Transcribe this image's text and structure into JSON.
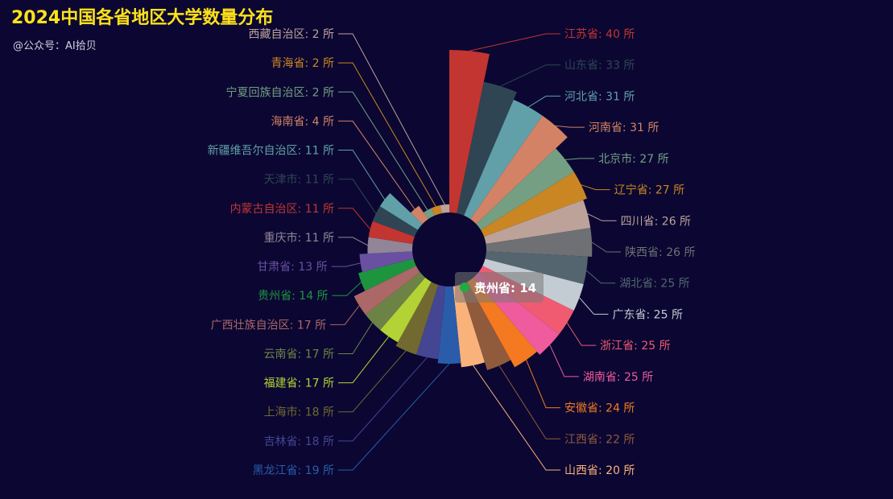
{
  "header": {
    "title": "2024中国各省地区大学数量分布",
    "subtitle": "@公众号：AI拾贝"
  },
  "tooltip": {
    "label": "贵州省: 14",
    "color": "#22a844"
  },
  "chart_data": {
    "type": "rose-pie",
    "unit": "所",
    "series": [
      {
        "name": "江苏省",
        "value": 40,
        "color": "#c23531"
      },
      {
        "name": "山东省",
        "value": 33,
        "color": "#2f4554"
      },
      {
        "name": "河北省",
        "value": 31,
        "color": "#61a0a8"
      },
      {
        "name": "河南省",
        "value": 31,
        "color": "#d48265"
      },
      {
        "name": "北京市",
        "value": 27,
        "color": "#749f83"
      },
      {
        "name": "辽宁省",
        "value": 27,
        "color": "#ca8622"
      },
      {
        "name": "四川省",
        "value": 26,
        "color": "#bda29a"
      },
      {
        "name": "陕西省",
        "value": 26,
        "color": "#6e7074"
      },
      {
        "name": "湖北省",
        "value": 25,
        "color": "#546570"
      },
      {
        "name": "广东省",
        "value": 25,
        "color": "#c4ccd3"
      },
      {
        "name": "浙江省",
        "value": 25,
        "color": "#f05b72"
      },
      {
        "name": "湖南省",
        "value": 25,
        "color": "#ef5b9c"
      },
      {
        "name": "安徽省",
        "value": 24,
        "color": "#f47920"
      },
      {
        "name": "江西省",
        "value": 22,
        "color": "#905a3d"
      },
      {
        "name": "山西省",
        "value": 20,
        "color": "#fab27b"
      },
      {
        "name": "黑龙江省",
        "value": 19,
        "color": "#2a5caa"
      },
      {
        "name": "吉林省",
        "value": 18,
        "color": "#444693"
      },
      {
        "name": "上海市",
        "value": 18,
        "color": "#726930"
      },
      {
        "name": "福建省",
        "value": 17,
        "color": "#b2d235"
      },
      {
        "name": "云南省",
        "value": 17,
        "color": "#6d8346"
      },
      {
        "name": "广西壮族自治区",
        "value": 17,
        "color": "#ac6767"
      },
      {
        "name": "贵州省",
        "value": 14,
        "color": "#1d953f"
      },
      {
        "name": "甘肃省",
        "value": 13,
        "color": "#6950a1"
      },
      {
        "name": "重庆市",
        "value": 11,
        "color": "#918597"
      },
      {
        "name": "内蒙古自治区",
        "value": 11,
        "color": "#c23531"
      },
      {
        "name": "天津市",
        "value": 11,
        "color": "#2f4554"
      },
      {
        "name": "新疆维吾尔自治区",
        "value": 11,
        "color": "#61a0a8"
      },
      {
        "name": "海南省",
        "value": 4,
        "color": "#d48265"
      },
      {
        "name": "宁夏回族自治区",
        "value": 2,
        "color": "#749f83"
      },
      {
        "name": "青海省",
        "value": 2,
        "color": "#ca8622"
      },
      {
        "name": "西藏自治区",
        "value": 2,
        "color": "#bda29a"
      }
    ]
  }
}
